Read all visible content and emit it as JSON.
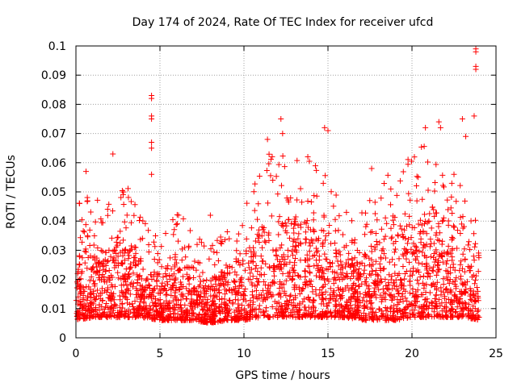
{
  "chart_data": {
    "type": "scatter",
    "title": "Day 174 of 2024, Rate Of TEC Index for receiver ufcd",
    "xlabel": "GPS time / hours",
    "ylabel": "ROTI / TECUs",
    "xlim": [
      0,
      25
    ],
    "ylim": [
      0,
      0.1
    ],
    "x_ticks": [
      0,
      5,
      10,
      15,
      20,
      25
    ],
    "x_tick_labels": [
      "0",
      "5",
      "10",
      "15",
      "20",
      "25"
    ],
    "y_ticks": [
      0,
      0.01,
      0.02,
      0.03,
      0.04,
      0.05,
      0.06,
      0.07,
      0.08,
      0.09,
      0.1
    ],
    "y_tick_labels": [
      "0",
      "0.01",
      "0.02",
      "0.03",
      "0.04",
      "0.05",
      "0.06",
      "0.07",
      "0.08",
      "0.09",
      "0.1"
    ],
    "grid": true,
    "marker": "+",
    "marker_color": "#ff0000",
    "notable_points": [
      {
        "x": 0.6,
        "y": 0.057
      },
      {
        "x": 2.2,
        "y": 0.063
      },
      {
        "x": 4.5,
        "y": 0.083
      },
      {
        "x": 4.5,
        "y": 0.082
      },
      {
        "x": 4.5,
        "y": 0.076
      },
      {
        "x": 4.5,
        "y": 0.075
      },
      {
        "x": 4.5,
        "y": 0.067
      },
      {
        "x": 4.5,
        "y": 0.065
      },
      {
        "x": 4.5,
        "y": 0.056
      },
      {
        "x": 8.0,
        "y": 0.042
      },
      {
        "x": 11.4,
        "y": 0.068
      },
      {
        "x": 12.2,
        "y": 0.075
      },
      {
        "x": 12.3,
        "y": 0.07
      },
      {
        "x": 13.8,
        "y": 0.062
      },
      {
        "x": 14.8,
        "y": 0.072
      },
      {
        "x": 15.0,
        "y": 0.071
      },
      {
        "x": 16.1,
        "y": 0.043
      },
      {
        "x": 17.6,
        "y": 0.058
      },
      {
        "x": 20.8,
        "y": 0.072
      },
      {
        "x": 21.6,
        "y": 0.074
      },
      {
        "x": 21.7,
        "y": 0.072
      },
      {
        "x": 22.5,
        "y": 0.056
      },
      {
        "x": 23.0,
        "y": 0.075
      },
      {
        "x": 23.2,
        "y": 0.069
      },
      {
        "x": 23.7,
        "y": 0.076
      },
      {
        "x": 23.8,
        "y": 0.099
      },
      {
        "x": 23.8,
        "y": 0.098
      },
      {
        "x": 23.8,
        "y": 0.093
      },
      {
        "x": 23.8,
        "y": 0.092
      }
    ],
    "density_profile": {
      "x_hours": [
        0,
        1,
        2,
        3,
        4,
        5,
        6,
        7,
        8,
        9,
        10,
        11,
        12,
        13,
        14,
        15,
        16,
        17,
        18,
        19,
        20,
        21,
        22,
        23,
        24
      ],
      "typical_low": [
        0.006,
        0.007,
        0.007,
        0.007,
        0.007,
        0.006,
        0.006,
        0.006,
        0.005,
        0.006,
        0.006,
        0.007,
        0.007,
        0.007,
        0.007,
        0.007,
        0.007,
        0.006,
        0.006,
        0.006,
        0.007,
        0.007,
        0.007,
        0.007,
        0.006
      ],
      "typical_high": [
        0.03,
        0.032,
        0.03,
        0.034,
        0.026,
        0.022,
        0.028,
        0.024,
        0.02,
        0.024,
        0.028,
        0.04,
        0.042,
        0.04,
        0.04,
        0.036,
        0.028,
        0.028,
        0.034,
        0.038,
        0.04,
        0.044,
        0.04,
        0.036,
        0.03
      ]
    }
  }
}
